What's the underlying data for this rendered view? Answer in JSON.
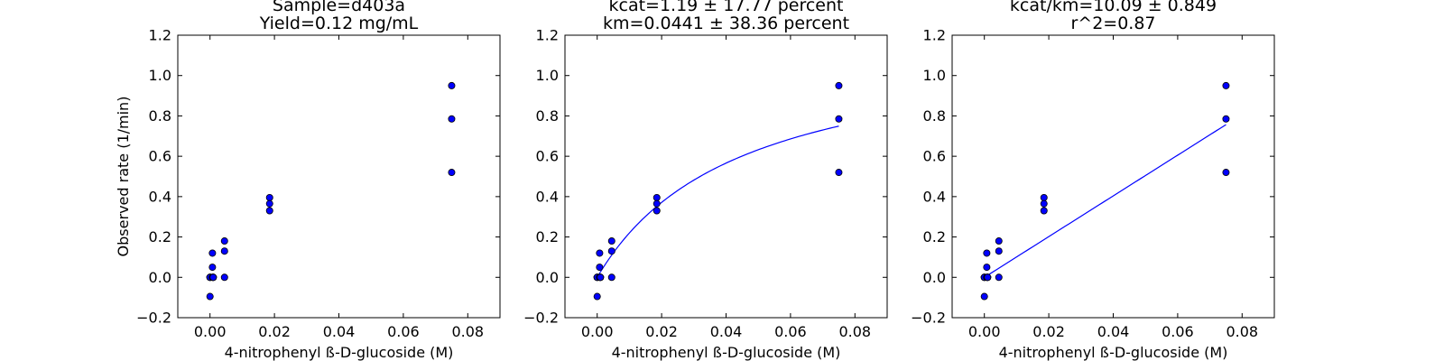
{
  "chart_data": [
    {
      "type": "scatter",
      "title_lines": [
        "Sample=d403a",
        "Yield=0.12 mg/mL"
      ],
      "xlabel": "4-nitrophenyl ß-D-glucoside (M)",
      "ylabel": "Observed rate (1/min)",
      "xlim": [
        -0.01,
        0.09
      ],
      "ylim": [
        -0.2,
        1.2
      ],
      "xticks": [
        "0.00",
        "0.02",
        "0.04",
        "0.06",
        "0.08"
      ],
      "yticks": [
        "−0.2",
        "0.0",
        "0.2",
        "0.4",
        "0.6",
        "0.8",
        "1.0",
        "1.2"
      ],
      "grid": false,
      "series": [
        {
          "x": [
            0.0,
            0.0,
            0.0,
            0.0,
            0.00075,
            0.00075,
            0.00075,
            0.001,
            0.001,
            0.001,
            0.0045,
            0.0045,
            0.0045,
            0.0185,
            0.0185,
            0.0185,
            0.075,
            0.075,
            0.075
          ],
          "y": [
            0.0,
            0.0,
            0.0,
            -0.095,
            0.12,
            0.05,
            0.0,
            0.0,
            0.0,
            0.0,
            0.18,
            0.13,
            0.0,
            0.395,
            0.365,
            0.33,
            0.95,
            0.785,
            0.52
          ]
        }
      ]
    },
    {
      "type": "scatter",
      "title_lines": [
        "kcat=1.19 ± 17.77 percent",
        "km=0.0441 ± 38.36 percent"
      ],
      "xlabel": "4-nitrophenyl ß-D-glucoside (M)",
      "ylabel": "",
      "xlim": [
        -0.01,
        0.09
      ],
      "ylim": [
        -0.2,
        1.2
      ],
      "xticks": [
        "0.00",
        "0.02",
        "0.04",
        "0.06",
        "0.08"
      ],
      "yticks": [
        "−0.2",
        "0.0",
        "0.2",
        "0.4",
        "0.6",
        "0.8",
        "1.0",
        "1.2"
      ],
      "grid": false,
      "series": [
        {
          "x": [
            0.0,
            0.0,
            0.0,
            0.0,
            0.00075,
            0.00075,
            0.00075,
            0.001,
            0.001,
            0.001,
            0.0045,
            0.0045,
            0.0045,
            0.0185,
            0.0185,
            0.0185,
            0.075,
            0.075,
            0.075
          ],
          "y": [
            0.0,
            0.0,
            0.0,
            -0.095,
            0.12,
            0.05,
            0.0,
            0.0,
            0.0,
            0.0,
            0.18,
            0.13,
            0.0,
            0.395,
            0.365,
            0.33,
            0.95,
            0.785,
            0.52
          ]
        }
      ],
      "fit": {
        "model": "michaelis-menten",
        "kcat": 1.19,
        "km": 0.0441,
        "x_range": [
          0.0,
          0.075
        ]
      }
    },
    {
      "type": "scatter",
      "title_lines": [
        "kcat/km=10.09 ± 0.849",
        "r^2=0.87"
      ],
      "xlabel": "4-nitrophenyl ß-D-glucoside (M)",
      "ylabel": "",
      "xlim": [
        -0.01,
        0.09
      ],
      "ylim": [
        -0.2,
        1.2
      ],
      "xticks": [
        "0.00",
        "0.02",
        "0.04",
        "0.06",
        "0.08"
      ],
      "yticks": [
        "−0.2",
        "0.0",
        "0.2",
        "0.4",
        "0.6",
        "0.8",
        "1.0",
        "1.2"
      ],
      "grid": false,
      "series": [
        {
          "x": [
            0.0,
            0.0,
            0.0,
            0.0,
            0.00075,
            0.00075,
            0.00075,
            0.001,
            0.001,
            0.001,
            0.0045,
            0.0045,
            0.0045,
            0.0185,
            0.0185,
            0.0185,
            0.075,
            0.075,
            0.075
          ],
          "y": [
            0.0,
            0.0,
            0.0,
            -0.095,
            0.12,
            0.05,
            0.0,
            0.0,
            0.0,
            0.0,
            0.18,
            0.13,
            0.0,
            0.395,
            0.365,
            0.33,
            0.95,
            0.785,
            0.52
          ]
        }
      ],
      "fit": {
        "model": "linear",
        "slope": 10.09,
        "x_range": [
          0.0,
          0.075
        ]
      }
    }
  ],
  "colors": {
    "marker": "#0000ff",
    "fit_line": "#0000ff",
    "axes": "#000000"
  }
}
